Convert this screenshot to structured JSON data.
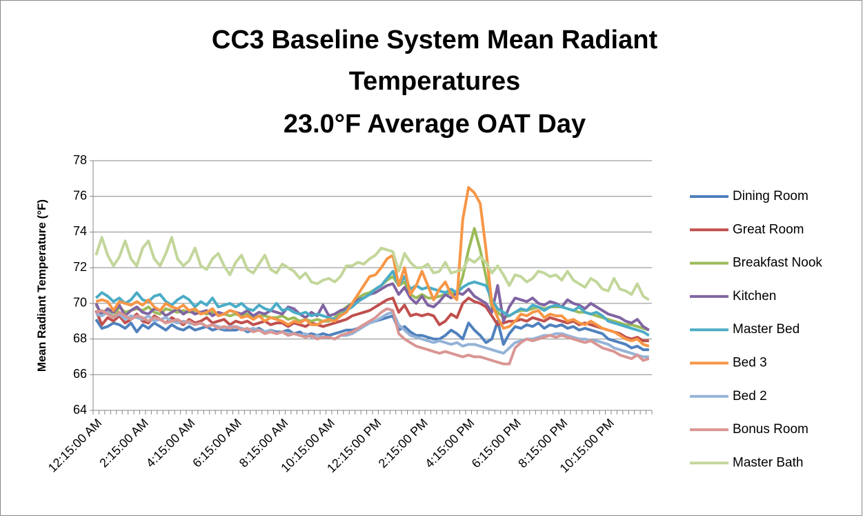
{
  "chart_data": {
    "type": "line",
    "title": [
      "CC3 Baseline System Mean Radiant",
      "Temperatures",
      "23.0°F Average OAT Day"
    ],
    "y_label": "Mean Radiant Temperature (°F)",
    "ylim": [
      64,
      78
    ],
    "yticks": [
      64,
      66,
      68,
      70,
      72,
      74,
      76,
      78
    ],
    "grid": true,
    "legend": "right",
    "categories": [
      "12:15:00 AM",
      null,
      null,
      null,
      null,
      null,
      null,
      null,
      "2:15:00 AM",
      null,
      null,
      null,
      null,
      null,
      null,
      null,
      "4:15:00 AM",
      null,
      null,
      null,
      null,
      null,
      null,
      null,
      "6:15:00 AM",
      null,
      null,
      null,
      null,
      null,
      null,
      null,
      "8:15:00 AM",
      null,
      null,
      null,
      null,
      null,
      null,
      null,
      "10:15:00 AM",
      null,
      null,
      null,
      null,
      null,
      null,
      null,
      "12:15:00 PM",
      null,
      null,
      null,
      null,
      null,
      null,
      null,
      "2:15:00 PM",
      null,
      null,
      null,
      null,
      null,
      null,
      null,
      "4:15:00 PM",
      null,
      null,
      null,
      null,
      null,
      null,
      null,
      "6:15:00 PM",
      null,
      null,
      null,
      null,
      null,
      null,
      null,
      "8:15:00 PM",
      null,
      null,
      null,
      null,
      null,
      null,
      null,
      "10:15:00 PM",
      null,
      null,
      null,
      null,
      null,
      null,
      null
    ],
    "series": [
      {
        "name": "Dining Room",
        "color": "#4F81BD",
        "values": [
          69.1,
          68.6,
          68.7,
          68.9,
          68.8,
          68.6,
          68.9,
          68.4,
          68.8,
          68.6,
          68.9,
          68.7,
          68.5,
          68.8,
          68.6,
          68.5,
          68.7,
          68.5,
          68.6,
          68.7,
          68.5,
          68.6,
          68.5,
          68.5,
          68.5,
          68.6,
          68.4,
          68.5,
          68.6,
          68.4,
          68.5,
          68.4,
          68.4,
          68.5,
          68.3,
          68.4,
          68.2,
          68.3,
          68.2,
          68.3,
          68.2,
          68.3,
          68.4,
          68.5,
          68.5,
          68.6,
          68.8,
          68.9,
          69.0,
          69.1,
          69.2,
          69.3,
          68.5,
          68.7,
          68.4,
          68.2,
          68.2,
          68.1,
          68.0,
          68.0,
          68.2,
          68.5,
          68.3,
          68.0,
          68.9,
          68.5,
          68.2,
          67.8,
          68.0,
          69.0,
          67.7,
          68.3,
          68.7,
          68.6,
          68.8,
          68.7,
          68.9,
          68.6,
          68.8,
          68.7,
          68.8,
          68.6,
          68.7,
          68.5,
          68.6,
          68.5,
          68.4,
          68.3,
          68.0,
          67.9,
          67.8,
          67.7,
          67.5,
          67.6,
          67.4,
          67.4
        ]
      },
      {
        "name": "Great Room",
        "color": "#C0504D",
        "values": [
          69.6,
          68.8,
          69.2,
          69.0,
          69.3,
          68.9,
          69.1,
          69.4,
          69.0,
          68.9,
          69.3,
          69.1,
          68.9,
          69.2,
          69.0,
          68.8,
          69.1,
          68.9,
          69.0,
          69.2,
          68.9,
          69.0,
          69.1,
          68.8,
          69.0,
          68.9,
          69.0,
          68.8,
          68.9,
          69.0,
          68.8,
          68.9,
          68.9,
          68.7,
          68.9,
          68.8,
          68.7,
          68.9,
          68.8,
          68.7,
          68.8,
          68.9,
          69.0,
          69.1,
          69.3,
          69.4,
          69.5,
          69.6,
          69.8,
          70.0,
          70.2,
          70.3,
          69.5,
          69.9,
          69.3,
          69.4,
          69.3,
          69.4,
          69.3,
          68.8,
          69.0,
          69.4,
          69.2,
          70.0,
          70.3,
          70.1,
          70.0,
          69.8,
          69.3,
          68.8,
          68.9,
          69.0,
          69.0,
          69.1,
          69.0,
          69.2,
          69.1,
          69.0,
          69.2,
          69.1,
          69.0,
          68.9,
          69.0,
          68.8,
          68.9,
          68.8,
          68.7,
          68.6,
          68.5,
          68.4,
          68.3,
          68.1,
          68.0,
          68.1,
          67.9,
          67.9
        ]
      },
      {
        "name": "Breakfast Nook",
        "color": "#9BBB59",
        "values": [
          69.9,
          69.4,
          69.7,
          69.2,
          69.8,
          69.5,
          69.6,
          69.7,
          69.6,
          69.8,
          69.5,
          69.4,
          69.7,
          69.6,
          69.5,
          69.6,
          69.5,
          69.6,
          69.5,
          69.4,
          69.5,
          69.4,
          69.4,
          69.3,
          69.4,
          69.3,
          69.4,
          69.2,
          69.3,
          69.3,
          69.2,
          69.2,
          69.3,
          69.1,
          69.2,
          69.0,
          69.1,
          69.0,
          69.1,
          69.0,
          69.0,
          69.2,
          69.5,
          69.8,
          70.0,
          70.3,
          70.5,
          70.6,
          70.8,
          71.0,
          71.3,
          71.5,
          71.0,
          71.2,
          70.5,
          70.3,
          70.5,
          70.3,
          70.3,
          70.4,
          70.5,
          70.6,
          70.5,
          71.5,
          73.0,
          74.2,
          73.0,
          71.5,
          69.8,
          69.5,
          69.2,
          69.3,
          69.5,
          69.6,
          69.6,
          69.7,
          69.8,
          69.7,
          69.8,
          69.8,
          69.8,
          69.7,
          69.6,
          69.5,
          69.5,
          69.4,
          69.3,
          69.2,
          69.1,
          69.0,
          68.9,
          68.8,
          68.8,
          68.7,
          68.6,
          68.5
        ]
      },
      {
        "name": "Kitchen",
        "color": "#8064A2",
        "values": [
          70.0,
          69.3,
          69.7,
          69.5,
          69.9,
          69.3,
          69.6,
          69.8,
          69.5,
          69.4,
          69.7,
          69.6,
          69.3,
          69.5,
          69.7,
          69.4,
          69.6,
          69.4,
          69.5,
          69.6,
          69.3,
          69.5,
          69.4,
          69.6,
          69.5,
          69.4,
          69.6,
          69.3,
          69.5,
          69.4,
          69.6,
          69.5,
          69.4,
          69.8,
          69.7,
          69.4,
          69.2,
          69.5,
          69.3,
          69.9,
          69.3,
          69.4,
          69.6,
          69.7,
          70.0,
          70.2,
          70.3,
          70.5,
          70.6,
          70.8,
          71.0,
          71.1,
          70.5,
          70.9,
          70.3,
          70.0,
          70.4,
          69.9,
          69.8,
          70.1,
          70.5,
          70.3,
          70.6,
          70.5,
          70.8,
          70.4,
          70.2,
          70.0,
          69.5,
          71.0,
          69.0,
          69.8,
          70.3,
          70.2,
          70.1,
          70.3,
          70.0,
          69.9,
          70.1,
          70.0,
          69.8,
          70.2,
          70.0,
          69.9,
          69.7,
          70.0,
          69.8,
          69.6,
          69.4,
          69.3,
          69.2,
          69.0,
          68.9,
          69.1,
          68.7,
          68.5
        ]
      },
      {
        "name": "Master Bed",
        "color": "#4BACC6",
        "values": [
          70.3,
          70.6,
          70.4,
          70.1,
          70.3,
          70.0,
          70.2,
          70.6,
          70.2,
          70.1,
          70.4,
          70.5,
          70.1,
          69.9,
          70.2,
          70.4,
          70.2,
          69.8,
          70.1,
          69.9,
          70.3,
          69.8,
          69.9,
          70.0,
          69.8,
          70.0,
          69.7,
          69.6,
          69.9,
          69.7,
          69.6,
          70.0,
          69.6,
          69.7,
          69.5,
          69.4,
          69.5,
          69.3,
          69.4,
          69.3,
          69.2,
          69.1,
          69.3,
          69.6,
          69.8,
          70.1,
          70.3,
          70.5,
          70.8,
          71.0,
          71.4,
          71.8,
          71.0,
          71.5,
          70.8,
          71.0,
          70.8,
          70.9,
          70.8,
          70.7,
          70.6,
          70.8,
          70.6,
          70.9,
          71.1,
          71.2,
          71.1,
          71.0,
          70.2,
          69.7,
          69.5,
          69.3,
          69.5,
          69.7,
          69.6,
          69.9,
          69.8,
          69.6,
          69.8,
          69.9,
          69.8,
          69.7,
          69.6,
          69.8,
          69.5,
          69.4,
          69.5,
          69.3,
          69.0,
          68.9,
          68.8,
          68.7,
          68.6,
          68.5,
          68.4,
          68.2
        ]
      },
      {
        "name": "Bed 3",
        "color": "#F79646",
        "values": [
          70.1,
          70.2,
          70.1,
          69.6,
          70.1,
          70.0,
          69.9,
          70.1,
          69.9,
          70.2,
          69.8,
          69.6,
          70.0,
          69.8,
          69.7,
          69.9,
          69.6,
          69.7,
          69.4,
          69.5,
          69.7,
          69.3,
          69.4,
          69.6,
          69.5,
          69.2,
          69.3,
          69.1,
          69.3,
          69.0,
          69.2,
          69.1,
          69.0,
          68.8,
          69.0,
          68.9,
          69.1,
          68.8,
          68.8,
          69.0,
          69.1,
          69.0,
          69.3,
          69.5,
          70.0,
          70.5,
          71.0,
          71.5,
          71.6,
          72.0,
          72.5,
          72.7,
          71.0,
          72.0,
          70.5,
          71.0,
          71.8,
          71.0,
          70.2,
          70.8,
          71.2,
          70.5,
          70.2,
          74.7,
          76.5,
          76.2,
          75.6,
          73.0,
          70.0,
          69.2,
          68.6,
          68.7,
          69.0,
          69.4,
          69.3,
          69.5,
          69.6,
          69.2,
          69.4,
          69.3,
          69.3,
          69.0,
          69.1,
          68.9,
          68.8,
          69.0,
          68.8,
          68.6,
          68.5,
          68.4,
          68.2,
          68.0,
          67.9,
          68.0,
          67.7,
          67.6
        ]
      },
      {
        "name": "Bed 2",
        "color": "#95B3D7",
        "values": [
          69.4,
          69.3,
          69.5,
          69.2,
          69.4,
          69.1,
          69.3,
          69.2,
          69.1,
          69.3,
          69.0,
          69.1,
          69.2,
          69.0,
          68.9,
          69.0,
          68.9,
          68.8,
          68.9,
          68.7,
          68.8,
          68.7,
          68.6,
          68.7,
          68.7,
          68.6,
          68.5,
          68.6,
          68.5,
          68.4,
          68.5,
          68.3,
          68.4,
          68.3,
          68.3,
          68.2,
          68.3,
          68.1,
          68.2,
          68.1,
          68.1,
          68.0,
          68.2,
          68.2,
          68.3,
          68.5,
          68.7,
          68.9,
          69.0,
          69.2,
          69.4,
          69.5,
          68.8,
          68.5,
          68.2,
          68.1,
          68.0,
          67.9,
          67.8,
          67.9,
          67.8,
          67.7,
          67.8,
          67.6,
          67.7,
          67.7,
          67.6,
          67.5,
          67.4,
          67.3,
          67.2,
          67.5,
          67.8,
          67.9,
          68.0,
          68.0,
          68.1,
          68.2,
          68.2,
          68.3,
          68.3,
          68.2,
          68.1,
          68.0,
          68.0,
          67.9,
          67.9,
          67.8,
          67.7,
          67.5,
          67.4,
          67.3,
          67.2,
          67.1,
          67.0,
          67.0
        ]
      },
      {
        "name": "Bonus Room",
        "color": "#D99694",
        "values": [
          69.5,
          69.6,
          69.4,
          69.2,
          69.5,
          69.3,
          69.1,
          69.3,
          69.2,
          69.0,
          69.2,
          69.1,
          68.9,
          69.0,
          69.1,
          68.9,
          69.0,
          68.8,
          68.9,
          68.7,
          68.8,
          68.6,
          68.7,
          68.6,
          68.7,
          68.5,
          68.6,
          68.4,
          68.5,
          68.3,
          68.4,
          68.3,
          68.4,
          68.2,
          68.3,
          68.2,
          68.1,
          68.2,
          68.0,
          68.1,
          68.1,
          68.0,
          68.2,
          68.3,
          68.4,
          68.6,
          68.8,
          69.0,
          69.2,
          69.5,
          69.7,
          69.6,
          68.3,
          68.0,
          67.8,
          67.6,
          67.5,
          67.4,
          67.3,
          67.2,
          67.3,
          67.2,
          67.1,
          67.0,
          67.1,
          67.0,
          67.0,
          66.9,
          66.8,
          66.7,
          66.6,
          66.6,
          67.5,
          67.8,
          68.0,
          67.9,
          68.0,
          68.1,
          68.2,
          68.1,
          68.2,
          68.1,
          68.0,
          67.9,
          67.8,
          67.9,
          67.7,
          67.5,
          67.4,
          67.3,
          67.1,
          67.0,
          66.9,
          67.1,
          66.8,
          66.9
        ]
      },
      {
        "name": "Master Bath",
        "color": "#C3D69B",
        "values": [
          72.7,
          73.7,
          72.7,
          72.1,
          72.6,
          73.5,
          72.5,
          72.1,
          73.1,
          73.5,
          72.5,
          72.1,
          72.8,
          73.7,
          72.5,
          72.1,
          72.4,
          73.1,
          72.1,
          71.9,
          72.5,
          72.8,
          72.1,
          71.6,
          72.3,
          72.7,
          71.9,
          71.7,
          72.2,
          72.7,
          71.9,
          71.7,
          72.2,
          72.0,
          71.8,
          71.4,
          71.7,
          71.2,
          71.1,
          71.3,
          71.4,
          71.2,
          71.5,
          72.1,
          72.1,
          72.3,
          72.2,
          72.5,
          72.7,
          73.1,
          73.0,
          72.9,
          71.8,
          72.8,
          72.3,
          72.0,
          72.0,
          72.2,
          71.7,
          71.8,
          72.3,
          71.7,
          71.8,
          71.9,
          72.5,
          72.3,
          72.6,
          72.3,
          71.7,
          72.1,
          71.6,
          71.0,
          71.6,
          71.5,
          71.2,
          71.4,
          71.8,
          71.7,
          71.5,
          71.6,
          71.3,
          71.8,
          71.3,
          71.1,
          70.9,
          71.4,
          71.2,
          70.8,
          70.7,
          71.4,
          70.8,
          70.7,
          70.5,
          71.1,
          70.4,
          70.2
        ]
      }
    ]
  }
}
